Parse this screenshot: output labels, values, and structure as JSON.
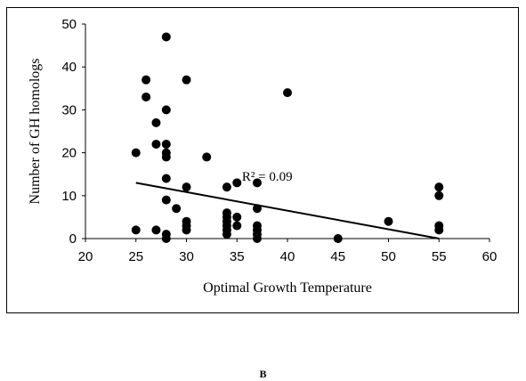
{
  "chart_data": {
    "type": "scatter",
    "xlabel": "Optimal Growth Temperature",
    "ylabel": "Number of GH homologs",
    "xlim": [
      20,
      60
    ],
    "ylim": [
      0,
      50
    ],
    "x_ticks": [
      20,
      25,
      30,
      35,
      40,
      45,
      50,
      55,
      60
    ],
    "y_ticks": [
      0,
      10,
      20,
      30,
      40,
      50
    ],
    "grid": false,
    "legend": "none",
    "series": [
      {
        "points": [
          [
            25,
            20
          ],
          [
            25,
            2
          ],
          [
            26,
            37
          ],
          [
            26,
            33
          ],
          [
            27,
            27
          ],
          [
            27,
            22
          ],
          [
            27,
            2
          ],
          [
            28,
            47
          ],
          [
            28,
            30
          ],
          [
            28,
            22
          ],
          [
            28,
            20
          ],
          [
            28,
            19
          ],
          [
            28,
            14
          ],
          [
            28,
            9
          ],
          [
            28,
            1
          ],
          [
            28,
            0
          ],
          [
            29,
            7
          ],
          [
            30,
            37
          ],
          [
            30,
            12
          ],
          [
            30,
            4
          ],
          [
            30,
            3
          ],
          [
            30,
            2
          ],
          [
            32,
            19
          ],
          [
            34,
            12
          ],
          [
            34,
            6
          ],
          [
            34,
            5
          ],
          [
            34,
            4
          ],
          [
            34,
            3
          ],
          [
            34,
            2
          ],
          [
            34,
            1
          ],
          [
            35,
            13
          ],
          [
            35,
            5
          ],
          [
            35,
            3
          ],
          [
            37,
            13
          ],
          [
            37,
            7
          ],
          [
            37,
            3
          ],
          [
            37,
            2
          ],
          [
            37,
            1
          ],
          [
            37,
            0
          ],
          [
            40,
            34
          ],
          [
            45,
            0
          ],
          [
            50,
            4
          ],
          [
            55,
            12
          ],
          [
            55,
            10
          ],
          [
            55,
            3
          ],
          [
            55,
            2
          ]
        ]
      }
    ],
    "trendline": {
      "x": [
        25,
        55
      ],
      "y": [
        13,
        0
      ]
    },
    "annotation": "R² = 0.09",
    "annotation_position": {
      "x": 35.5,
      "y": 13.5
    },
    "marker_color": "#000000"
  },
  "panel_label": "B"
}
